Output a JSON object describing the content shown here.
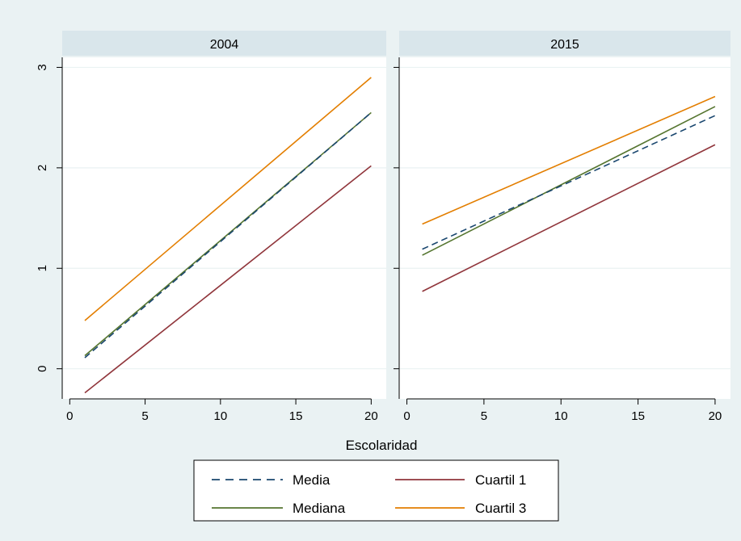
{
  "chart_data": {
    "type": "line",
    "xlabel": "Escolaridad",
    "ylabel": "",
    "xlim": [
      -0.5,
      21
    ],
    "ylim": [
      -0.3,
      3.1
    ],
    "xticks": [
      0,
      5,
      10,
      15,
      20
    ],
    "yticks": [
      0,
      1,
      2,
      3
    ],
    "grid": true,
    "legend_position": "bottom",
    "colors": {
      "background": "#eaf2f3",
      "strip": "#d9e6eb",
      "grid": "#eaf2f3",
      "Media": "#1a476f",
      "Mediana": "#55752f",
      "Cuartil 1": "#90353b",
      "Cuartil 3": "#e37e00"
    },
    "legend": [
      {
        "name": "Media",
        "style": "dashed"
      },
      {
        "name": "Cuartil 1",
        "style": "solid"
      },
      {
        "name": "Mediana",
        "style": "solid"
      },
      {
        "name": "Cuartil 3",
        "style": "solid"
      }
    ],
    "panels": [
      {
        "title": "2004",
        "series": [
          {
            "name": "Media",
            "x": [
              1,
              20
            ],
            "y": [
              0.11,
              2.55
            ]
          },
          {
            "name": "Mediana",
            "x": [
              1,
              20
            ],
            "y": [
              0.13,
              2.55
            ]
          },
          {
            "name": "Cuartil 1",
            "x": [
              1,
              20
            ],
            "y": [
              -0.24,
              2.02
            ]
          },
          {
            "name": "Cuartil 3",
            "x": [
              1,
              20
            ],
            "y": [
              0.48,
              2.9
            ]
          }
        ]
      },
      {
        "title": "2015",
        "series": [
          {
            "name": "Media",
            "x": [
              1,
              20
            ],
            "y": [
              1.19,
              2.52
            ]
          },
          {
            "name": "Mediana",
            "x": [
              1,
              20
            ],
            "y": [
              1.13,
              2.61
            ]
          },
          {
            "name": "Cuartil 1",
            "x": [
              1,
              20
            ],
            "y": [
              0.77,
              2.23
            ]
          },
          {
            "name": "Cuartil 3",
            "x": [
              1,
              20
            ],
            "y": [
              1.44,
              2.71
            ]
          }
        ]
      }
    ]
  }
}
